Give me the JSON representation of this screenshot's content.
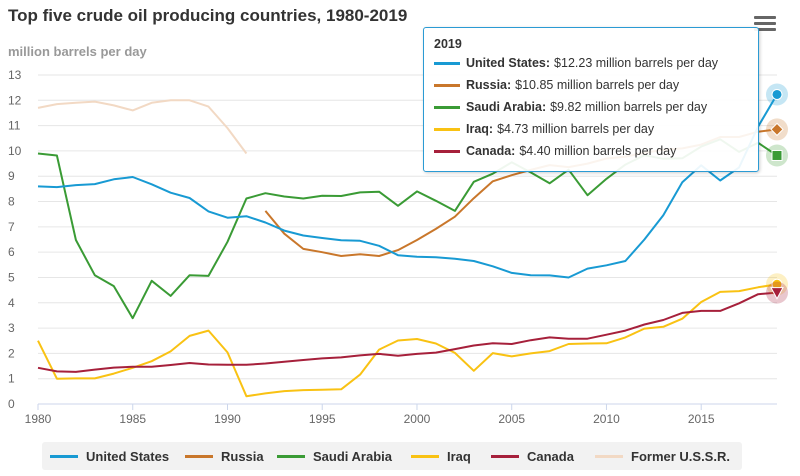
{
  "title": "Top five crude oil producing countries, 1980-2019",
  "unit_label": "million barrels per day",
  "menu_icon": "hamburger-menu-icon",
  "chart_data": {
    "type": "line",
    "title": "Top five crude oil producing countries, 1980-2019",
    "ylabel": "million barrels per day",
    "xlabel": "",
    "xlim": [
      1980,
      2019
    ],
    "ylim": [
      0,
      13
    ],
    "x_ticks": [
      1980,
      1985,
      1990,
      1995,
      2000,
      2005,
      2010,
      2015
    ],
    "y_ticks": [
      0,
      1,
      2,
      3,
      4,
      5,
      6,
      7,
      8,
      9,
      10,
      11,
      12,
      13
    ],
    "series": [
      {
        "name": "Former U.S.S.R.",
        "color": "#f2d9c4",
        "x": [
          1980,
          1981,
          1982,
          1983,
          1984,
          1985,
          1986,
          1987,
          1988,
          1989,
          1990,
          1991
        ],
        "values": [
          11.7,
          11.85,
          11.9,
          11.95,
          11.8,
          11.6,
          11.9,
          12.0,
          12.0,
          11.75,
          10.9,
          9.9
        ]
      },
      {
        "name": "Iraq",
        "color": "#f9c213",
        "x": [
          1980,
          1981,
          1982,
          1983,
          1984,
          1985,
          1986,
          1987,
          1988,
          1989,
          1990,
          1991,
          1992,
          1993,
          1994,
          1995,
          1996,
          1997,
          1998,
          1999,
          2000,
          2001,
          2002,
          2003,
          2004,
          2005,
          2006,
          2007,
          2008,
          2009,
          2010,
          2011,
          2012,
          2013,
          2014,
          2015,
          2016,
          2017,
          2018,
          2019
        ],
        "values": [
          2.5,
          1.0,
          1.01,
          1.01,
          1.2,
          1.43,
          1.69,
          2.08,
          2.69,
          2.9,
          2.04,
          0.31,
          0.42,
          0.51,
          0.55,
          0.56,
          0.58,
          1.16,
          2.15,
          2.51,
          2.57,
          2.39,
          2.02,
          1.31,
          2.01,
          1.88,
          2.0,
          2.09,
          2.37,
          2.39,
          2.4,
          2.63,
          2.98,
          3.05,
          3.37,
          4.03,
          4.43,
          4.46,
          4.61,
          4.73
        ]
      },
      {
        "name": "Canada",
        "color": "#a6203b",
        "x": [
          1980,
          1981,
          1982,
          1983,
          1984,
          1985,
          1986,
          1987,
          1988,
          1989,
          1990,
          1991,
          1992,
          1993,
          1994,
          1995,
          1996,
          1997,
          1998,
          1999,
          2000,
          2001,
          2002,
          2003,
          2004,
          2005,
          2006,
          2007,
          2008,
          2009,
          2010,
          2011,
          2012,
          2013,
          2014,
          2015,
          2016,
          2017,
          2018,
          2019
        ],
        "values": [
          1.43,
          1.29,
          1.27,
          1.36,
          1.44,
          1.47,
          1.47,
          1.54,
          1.62,
          1.56,
          1.55,
          1.55,
          1.6,
          1.67,
          1.74,
          1.8,
          1.84,
          1.92,
          1.98,
          1.91,
          1.98,
          2.03,
          2.17,
          2.31,
          2.4,
          2.37,
          2.52,
          2.63,
          2.58,
          2.58,
          2.74,
          2.9,
          3.14,
          3.32,
          3.6,
          3.68,
          3.68,
          3.98,
          4.34,
          4.4
        ]
      },
      {
        "name": "Russia",
        "color": "#c9772b",
        "x": [
          1992,
          1993,
          1994,
          1995,
          1996,
          1997,
          1998,
          1999,
          2000,
          2001,
          2002,
          2003,
          2004,
          2005,
          2006,
          2007,
          2008,
          2009,
          2010,
          2011,
          2012,
          2013,
          2014,
          2015,
          2016,
          2017,
          2018,
          2019
        ],
        "values": [
          7.63,
          6.73,
          6.13,
          6.0,
          5.85,
          5.92,
          5.85,
          6.08,
          6.48,
          6.92,
          7.4,
          8.13,
          8.8,
          9.04,
          9.25,
          9.44,
          9.36,
          9.5,
          9.7,
          9.77,
          9.92,
          10.05,
          10.1,
          10.25,
          10.55,
          10.55,
          10.76,
          10.85
        ]
      },
      {
        "name": "Saudi Arabia",
        "color": "#3a9b35",
        "x": [
          1980,
          1981,
          1982,
          1983,
          1984,
          1985,
          1986,
          1987,
          1988,
          1989,
          1990,
          1991,
          1992,
          1993,
          1994,
          1995,
          1996,
          1997,
          1998,
          1999,
          2000,
          2001,
          2002,
          2003,
          2004,
          2005,
          2006,
          2007,
          2008,
          2009,
          2010,
          2011,
          2012,
          2013,
          2014,
          2015,
          2016,
          2017,
          2018,
          2019
        ],
        "values": [
          9.9,
          9.82,
          6.48,
          5.09,
          4.66,
          3.39,
          4.87,
          4.27,
          5.09,
          5.06,
          6.41,
          8.12,
          8.33,
          8.2,
          8.12,
          8.23,
          8.22,
          8.36,
          8.39,
          7.83,
          8.4,
          8.03,
          7.63,
          8.78,
          9.1,
          9.55,
          9.15,
          8.72,
          9.26,
          8.25,
          8.9,
          9.46,
          9.83,
          9.69,
          9.71,
          10.17,
          10.46,
          9.96,
          10.32,
          9.82
        ]
      },
      {
        "name": "United States",
        "color": "#189ad3",
        "x": [
          1980,
          1981,
          1982,
          1983,
          1984,
          1985,
          1986,
          1987,
          1988,
          1989,
          1990,
          1991,
          1992,
          1993,
          1994,
          1995,
          1996,
          1997,
          1998,
          1999,
          2000,
          2001,
          2002,
          2003,
          2004,
          2005,
          2006,
          2007,
          2008,
          2009,
          2010,
          2011,
          2012,
          2013,
          2014,
          2015,
          2016,
          2017,
          2018,
          2019
        ],
        "values": [
          8.6,
          8.57,
          8.65,
          8.69,
          8.88,
          8.97,
          8.68,
          8.35,
          8.14,
          7.61,
          7.36,
          7.42,
          7.17,
          6.85,
          6.66,
          6.56,
          6.47,
          6.45,
          6.25,
          5.88,
          5.82,
          5.8,
          5.74,
          5.65,
          5.44,
          5.18,
          5.09,
          5.08,
          5.0,
          5.35,
          5.48,
          5.65,
          6.5,
          7.46,
          8.76,
          9.43,
          8.83,
          9.35,
          10.96,
          12.23
        ]
      }
    ]
  },
  "tooltip": {
    "year": "2019",
    "rows": [
      {
        "name": "United States:",
        "value": "$12.23 million barrels per day",
        "color": "#189ad3"
      },
      {
        "name": "Russia:",
        "value": "$10.85 million barrels per day",
        "color": "#c9772b"
      },
      {
        "name": "Saudi Arabia:",
        "value": "$9.82 million barrels per day",
        "color": "#3a9b35"
      },
      {
        "name": "Iraq:",
        "value": "$4.73 million barrels per day",
        "color": "#f9c213"
      },
      {
        "name": "Canada:",
        "value": "$4.40 million barrels per day",
        "color": "#a6203b"
      }
    ]
  },
  "legend": [
    {
      "label": "United States",
      "color": "#189ad3"
    },
    {
      "label": "Russia",
      "color": "#c9772b"
    },
    {
      "label": "Saudi Arabia",
      "color": "#3a9b35"
    },
    {
      "label": "Iraq",
      "color": "#f9c213"
    },
    {
      "label": "Canada",
      "color": "#a6203b"
    },
    {
      "label": "Former U.S.S.R.",
      "color": "#f2d9c4"
    }
  ]
}
